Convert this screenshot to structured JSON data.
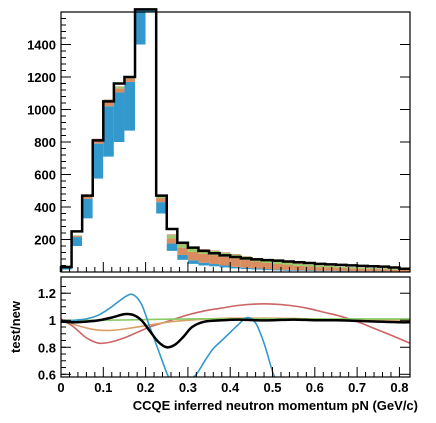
{
  "chart_data": [
    {
      "type": "bar",
      "subtype": "stacked-histogram-with-overlay",
      "title": "",
      "xlabel": "",
      "ylabel": "",
      "x_range": [
        0,
        0.825
      ],
      "ylim": [
        0,
        1600
      ],
      "bin_width": 0.025,
      "y_ticks": [
        200,
        400,
        600,
        800,
        1000,
        1200,
        1400
      ],
      "grid": false,
      "colors": {
        "white": "#ffffff",
        "blue": "#3399cc",
        "orange": "#d98c5f",
        "green": "#99cc66",
        "pink": "#cc6666",
        "outline": "#000000"
      },
      "bins_lower_edges": [
        0.0,
        0.025,
        0.05,
        0.075,
        0.1,
        0.125,
        0.15,
        0.175,
        0.2,
        0.225,
        0.25,
        0.275,
        0.3,
        0.325,
        0.35,
        0.375,
        0.4,
        0.425,
        0.45,
        0.475,
        0.5,
        0.525,
        0.55,
        0.575,
        0.6,
        0.625,
        0.65,
        0.675,
        0.7,
        0.725,
        0.75,
        0.775,
        0.8
      ],
      "stack_order": [
        "white",
        "blue",
        "orange",
        "green",
        "pink"
      ],
      "stack_values": {
        "white": [
          15,
          160,
          330,
          575,
          710,
          800,
          870,
          1400,
          1600,
          360,
          130,
          75,
          50,
          40,
          35,
          28,
          22,
          18,
          15,
          12,
          10,
          8,
          7,
          6,
          5,
          5,
          4,
          4,
          3,
          3,
          3,
          2,
          2
        ],
        "blue": [
          20,
          55,
          120,
          215,
          310,
          305,
          300,
          285,
          370,
          70,
          45,
          30,
          22,
          17,
          14,
          12,
          10,
          8,
          7,
          6,
          5,
          5,
          4,
          4,
          3,
          3,
          3,
          2,
          2,
          2,
          2,
          1,
          1
        ],
        "orange": [
          4,
          8,
          12,
          20,
          30,
          25,
          22,
          22,
          25,
          25,
          32,
          45,
          52,
          55,
          55,
          54,
          52,
          48,
          43,
          38,
          34,
          30,
          27,
          24,
          22,
          20,
          18,
          16,
          14,
          13,
          12,
          11,
          10
        ],
        "green": [
          2,
          3,
          5,
          8,
          10,
          10,
          10,
          10,
          10,
          8,
          20,
          20,
          22,
          24,
          25,
          24,
          23,
          21,
          19,
          17,
          15,
          14,
          12,
          11,
          10,
          9,
          8,
          7,
          7,
          6,
          6,
          5,
          5
        ],
        "pink": [
          0,
          0,
          1,
          2,
          2,
          2,
          2,
          2,
          3,
          3,
          4,
          4,
          4,
          4,
          3,
          3,
          3,
          2,
          2,
          2,
          2,
          2,
          2,
          1,
          1,
          1,
          1,
          1,
          1,
          1,
          1,
          1,
          1
        ]
      },
      "outline_values": [
        30,
        250,
        470,
        810,
        1050,
        1160,
        1200,
        1700,
        2000,
        470,
        265,
        180,
        150,
        130,
        115,
        102,
        92,
        84,
        78,
        73,
        70,
        65,
        60,
        55,
        50,
        47,
        44,
        41,
        38,
        35,
        33,
        28,
        20
      ]
    },
    {
      "type": "line",
      "title": "",
      "xlabel": "CCQE inferred neutron momentum pN (GeV/c)",
      "ylabel": "test/new",
      "x_range": [
        0,
        0.825
      ],
      "ylim": [
        0.58,
        1.32
      ],
      "x_ticks": [
        "0",
        "0.1",
        "0.2",
        "0.3",
        "0.4",
        "0.5",
        "0.6",
        "0.7",
        "0.8"
      ],
      "x_tick_values": [
        0,
        0.1,
        0.2,
        0.3,
        0.4,
        0.5,
        0.6,
        0.7,
        0.8
      ],
      "y_ticks": [
        "0.6",
        "0.8",
        "1",
        "1.2"
      ],
      "y_tick_values": [
        0.6,
        0.8,
        1.0,
        1.2
      ],
      "grid": false,
      "series": [
        {
          "color": "#cc6666",
          "x": [
            0.0,
            0.03,
            0.06,
            0.09,
            0.12,
            0.15,
            0.18,
            0.21,
            0.24,
            0.27,
            0.3,
            0.34,
            0.38,
            0.42,
            0.46,
            0.5,
            0.54,
            0.58,
            0.62,
            0.66,
            0.7,
            0.74,
            0.78,
            0.825
          ],
          "y": [
            1.01,
            0.95,
            0.87,
            0.83,
            0.84,
            0.87,
            0.91,
            0.95,
            0.98,
            1.01,
            1.04,
            1.07,
            1.09,
            1.11,
            1.12,
            1.12,
            1.11,
            1.09,
            1.06,
            1.03,
            0.99,
            0.94,
            0.89,
            0.83
          ]
        },
        {
          "color": "#d9a066",
          "x": [
            0.0,
            0.04,
            0.08,
            0.12,
            0.16,
            0.2,
            0.25,
            0.3,
            0.35,
            0.4,
            0.5,
            0.6,
            0.7,
            0.825
          ],
          "y": [
            1.0,
            0.96,
            0.93,
            0.925,
            0.94,
            0.96,
            0.985,
            1.0,
            1.01,
            1.015,
            1.015,
            1.01,
            1.005,
            1.0
          ]
        },
        {
          "color": "#88cc66",
          "x": [
            0.0,
            0.1,
            0.2,
            0.3,
            0.4,
            0.5,
            0.6,
            0.7,
            0.825
          ],
          "y": [
            1.0,
            1.0,
            1.005,
            1.01,
            1.01,
            1.01,
            1.01,
            1.01,
            1.01
          ]
        },
        {
          "color": "#3399cc",
          "x": [
            0.0,
            0.03,
            0.06,
            0.09,
            0.12,
            0.15,
            0.17,
            0.19,
            0.21,
            0.23,
            0.25,
            0.26,
            0.27,
            0.28,
            0.3,
            0.32,
            0.34,
            0.36,
            0.38,
            0.4,
            0.42,
            0.44,
            0.46,
            0.48,
            0.5,
            0.51
          ],
          "y": [
            0.99,
            1.0,
            1.01,
            1.04,
            1.1,
            1.17,
            1.19,
            1.12,
            0.95,
            0.78,
            0.61,
            0.55,
            0.5,
            0.5,
            0.55,
            0.6,
            0.7,
            0.79,
            0.85,
            0.91,
            0.97,
            1.02,
            0.98,
            0.83,
            0.62,
            0.55
          ]
        },
        {
          "color": "#000000",
          "x": [
            0.0,
            0.03,
            0.06,
            0.09,
            0.12,
            0.15,
            0.17,
            0.19,
            0.21,
            0.23,
            0.25,
            0.27,
            0.29,
            0.31,
            0.34,
            0.38,
            0.42,
            0.46,
            0.5,
            0.55,
            0.6,
            0.65,
            0.7,
            0.75,
            0.8,
            0.825
          ],
          "y": [
            0.99,
            0.985,
            0.99,
            1.0,
            1.02,
            1.045,
            1.04,
            1.0,
            0.92,
            0.84,
            0.8,
            0.82,
            0.88,
            0.95,
            0.99,
            1.0,
            1.005,
            1.0,
            1.0,
            1.005,
            1.0,
            1.0,
            0.995,
            0.99,
            0.985,
            0.985
          ],
          "stroke_width": 2.5
        }
      ]
    }
  ]
}
